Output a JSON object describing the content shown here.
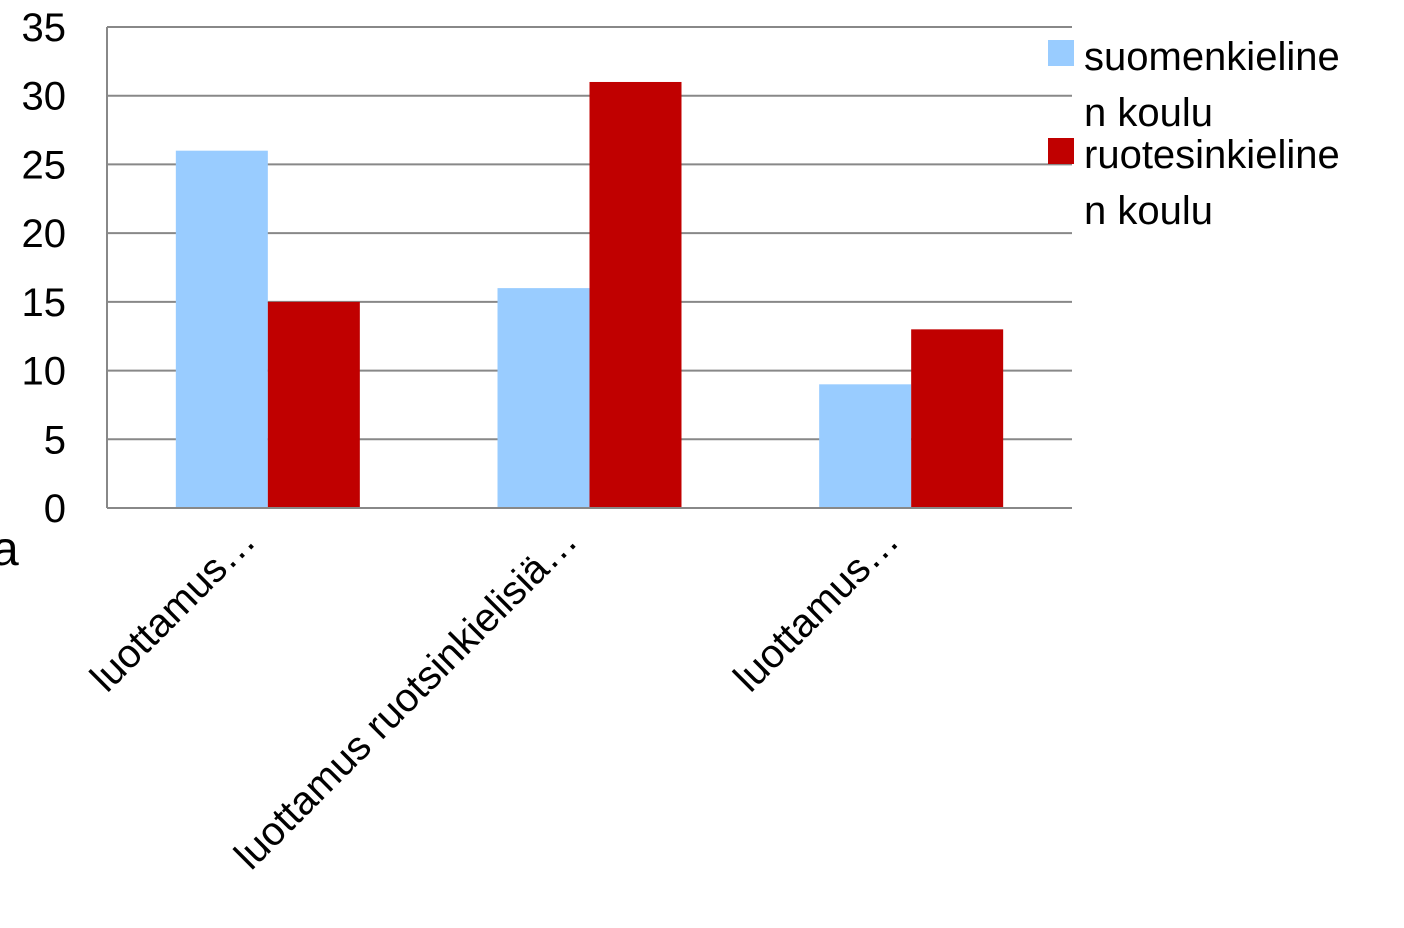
{
  "chart_data": {
    "type": "bar",
    "categories": [
      "luottamus…",
      "luottamus ruotsinkielisiä…",
      "luottamus…"
    ],
    "series": [
      {
        "name": "suomenkielinen koulu",
        "legend_lines": [
          "suomenkieline",
          "n koulu"
        ],
        "color": "#99CCFF",
        "values": [
          26,
          16,
          9
        ]
      },
      {
        "name": "ruotesinkielinen koulu",
        "legend_lines": [
          "ruotesinkieline",
          "n koulu"
        ],
        "color": "#C00000",
        "values": [
          15,
          31,
          13
        ]
      }
    ],
    "ylim": [
      0,
      35
    ],
    "yticks": [
      0,
      5,
      10,
      15,
      20,
      25,
      30,
      35
    ],
    "grid": true,
    "legend": "right"
  },
  "fragment": "a"
}
